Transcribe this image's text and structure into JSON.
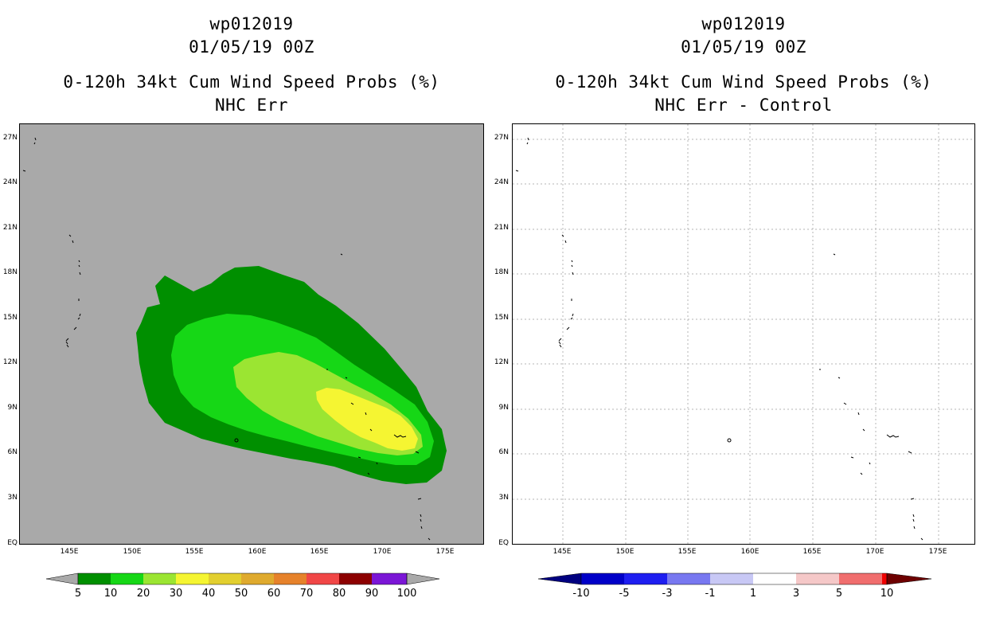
{
  "left": {
    "title1": "wp012019",
    "title2": "01/05/19 00Z",
    "title3": "0-120h 34kt Cum Wind Speed Probs (%)",
    "title4": "NHC Err",
    "background_color": "#a9a9a9",
    "colorbar": {
      "labels": [
        "5",
        "10",
        "20",
        "30",
        "40",
        "50",
        "60",
        "70",
        "80",
        "90",
        "100"
      ],
      "colors": [
        "#008f00",
        "#16d716",
        "#9be532",
        "#f5f532",
        "#e2cf2f",
        "#dfaa2e",
        "#e6822b",
        "#f04646",
        "#8c0000",
        "#7b16d6"
      ],
      "end_color": "#a9a9a9"
    },
    "probability_levels": [
      5,
      10,
      20,
      30
    ]
  },
  "right": {
    "title1": "wp012019",
    "title2": "01/05/19 00Z",
    "title3": "0-120h 34kt Cum Wind Speed Probs (%)",
    "title4": "NHC Err - Control",
    "colorbar": {
      "labels": [
        "-10",
        "-5",
        "-3",
        "-1",
        "1",
        "3",
        "5",
        "10"
      ],
      "colors": [
        "#0000c8",
        "#1e1ef0",
        "#7878f0",
        "#c8c8f5",
        "#ffffff",
        "#f5c8c8",
        "#f06e6e",
        "#f00000"
      ],
      "low_end_color": "#000080",
      "high_end_color": "#6e0000"
    }
  },
  "axes": {
    "lat_labels": [
      "27N",
      "24N",
      "21N",
      "18N",
      "15N",
      "12N",
      "9N",
      "6N",
      "3N",
      "EQ"
    ],
    "lon_labels": [
      "145E",
      "150E",
      "155E",
      "160E",
      "165E",
      "170E",
      "175E"
    ]
  }
}
